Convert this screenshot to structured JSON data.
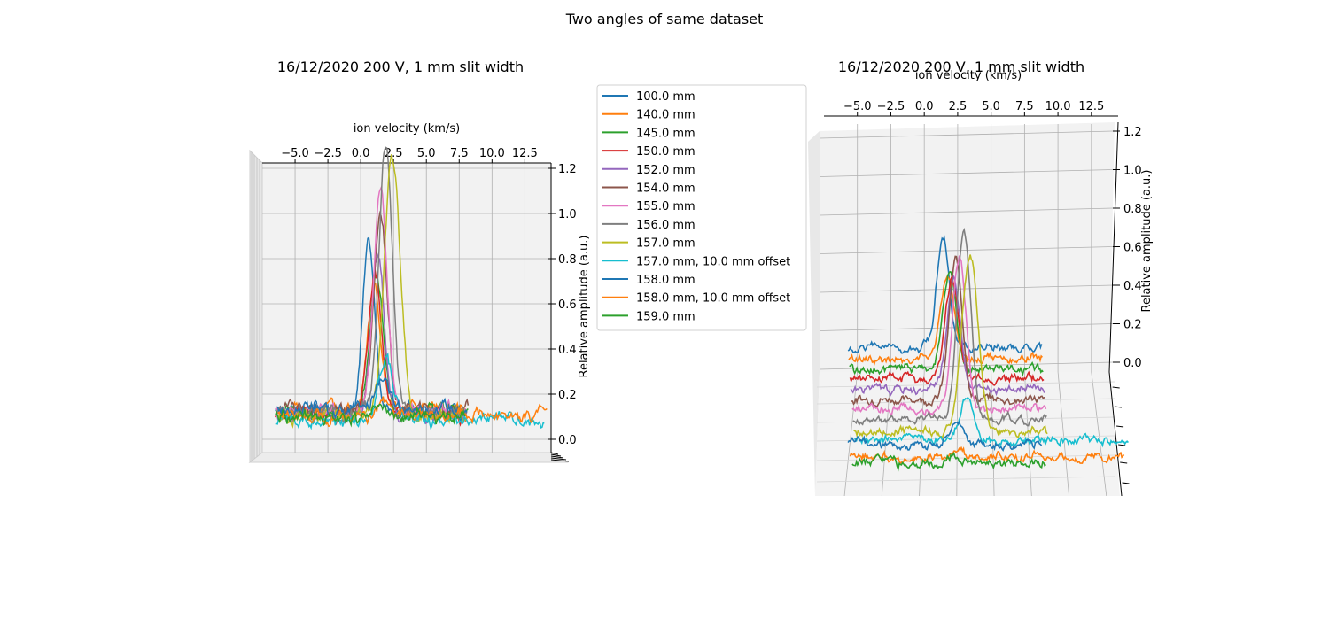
{
  "figure": {
    "suptitle": "Two angles of same dataset"
  },
  "colors": {
    "series": [
      "#1f77b4",
      "#ff7f0e",
      "#2ca02c",
      "#d62728",
      "#9467bd",
      "#8c564b",
      "#e377c2",
      "#7f7f7f",
      "#bcbd22",
      "#17becf",
      "#1f77b4",
      "#ff7f0e",
      "#2ca02c"
    ],
    "pane": "#f2f2f2",
    "grid": "#b0b0b0"
  },
  "chart_data": [
    {
      "type": "line",
      "projection": "3d",
      "title": "16/12/2020 200 V, 1 mm slit width",
      "xlabel": "ion velocity (km/s)",
      "ylabel": "",
      "zlabel": "Relative amplitude (a.u.)",
      "xlim": [
        -7.5,
        14.5
      ],
      "zlim": [
        0,
        1.25
      ],
      "x_ticks": [
        "−5.0",
        "−2.5",
        "0.0",
        "2.5",
        "5.0",
        "7.5",
        "10.0",
        "12.5"
      ],
      "x_tick_values": [
        -5,
        -2.5,
        0,
        2.5,
        5,
        7.5,
        10,
        12.5
      ],
      "z_ticks": [
        "0.0",
        "0.2",
        "0.4",
        "0.6",
        "0.8",
        "1.0",
        "1.2"
      ],
      "z_tick_values": [
        0,
        0.2,
        0.4,
        0.6,
        0.8,
        1.0,
        1.2
      ],
      "grid": true,
      "view": "nearly head-on"
    },
    {
      "type": "line",
      "projection": "3d",
      "title": "16/12/2020 200 V, 1 mm slit width",
      "xlabel": "ion velocity (km/s)",
      "ylabel": "",
      "zlabel": "Relative amplitude (a.u.)",
      "xlim": [
        -7.5,
        14.5
      ],
      "zlim": [
        0,
        1.25
      ],
      "x_ticks": [
        "−5.0",
        "−2.5",
        "0.0",
        "2.5",
        "5.0",
        "7.5",
        "10.0",
        "12.5"
      ],
      "x_tick_values": [
        -5,
        -2.5,
        0,
        2.5,
        5,
        7.5,
        10,
        12.5
      ],
      "z_ticks": [
        "0.0",
        "0.2",
        "0.4",
        "0.6",
        "0.8",
        "1.0",
        "1.2"
      ],
      "z_tick_values": [
        0,
        0.2,
        0.4,
        0.6,
        0.8,
        1.0,
        1.2
      ],
      "grid": true,
      "view": "elevated, series stacked in depth"
    }
  ],
  "series": [
    {
      "name": "100.0 mm",
      "x_range": [
        -6.5,
        8.0
      ],
      "baseline": 0.05,
      "peak_center": 0.6,
      "peak_height": 0.72,
      "peak_width": 0.45
    },
    {
      "name": "140.0 mm",
      "x_range": [
        -6.5,
        8.0
      ],
      "baseline": 0.05,
      "peak_center": 0.9,
      "peak_height": 0.55,
      "peak_width": 0.5
    },
    {
      "name": "145.0 mm",
      "x_range": [
        -6.5,
        8.0
      ],
      "baseline": 0.05,
      "peak_center": 1.0,
      "peak_height": 0.6,
      "peak_width": 0.5
    },
    {
      "name": "150.0 mm",
      "x_range": [
        -6.5,
        8.0
      ],
      "baseline": 0.05,
      "peak_center": 1.1,
      "peak_height": 0.62,
      "peak_width": 0.5
    },
    {
      "name": "152.0 mm",
      "x_range": [
        -6.5,
        8.0
      ],
      "baseline": 0.05,
      "peak_center": 1.2,
      "peak_height": 0.7,
      "peak_width": 0.5
    },
    {
      "name": "154.0 mm",
      "x_range": [
        -6.5,
        8.0
      ],
      "baseline": 0.05,
      "peak_center": 1.3,
      "peak_height": 0.88,
      "peak_width": 0.5
    },
    {
      "name": "155.0 mm",
      "x_range": [
        -6.5,
        8.0
      ],
      "baseline": 0.05,
      "peak_center": 1.5,
      "peak_height": 0.98,
      "peak_width": 0.5
    },
    {
      "name": "156.0 mm",
      "x_range": [
        -6.5,
        8.0
      ],
      "baseline": 0.05,
      "peak_center": 1.8,
      "peak_height": 1.2,
      "peak_width": 0.5
    },
    {
      "name": "157.0 mm",
      "x_range": [
        -6.5,
        8.0
      ],
      "baseline": 0.04,
      "peak_center": 2.2,
      "peak_height": 1.15,
      "peak_width": 0.6
    },
    {
      "name": "157.0 mm, 10.0 mm offset",
      "x_range": [
        -6.5,
        14.0
      ],
      "baseline": 0.03,
      "peak_center": 1.9,
      "peak_height": 0.28,
      "peak_width": 0.5
    },
    {
      "name": "158.0 mm",
      "x_range": [
        -6.5,
        8.0
      ],
      "baseline": 0.05,
      "peak_center": 1.6,
      "peak_height": 0.15,
      "peak_width": 0.5
    },
    {
      "name": "158.0 mm, 10.0 mm offset",
      "x_range": [
        -6.5,
        14.0
      ],
      "baseline": 0.02,
      "peak_center": 1.5,
      "peak_height": 0.06,
      "peak_width": 0.5
    },
    {
      "name": "159.0 mm",
      "x_range": [
        -6.5,
        8.0
      ],
      "baseline": 0.03,
      "peak_center": 1.2,
      "peak_height": 0.06,
      "peak_width": 0.5
    }
  ]
}
